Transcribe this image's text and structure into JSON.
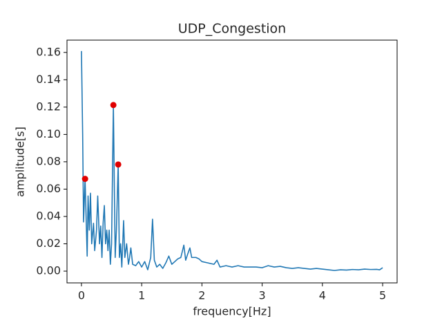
{
  "chart_data": {
    "type": "line",
    "title": "UDP_Congestion",
    "xlabel": "frequency[Hz]",
    "ylabel": "amplitude[s]",
    "xlim": [
      -0.24,
      5.24
    ],
    "ylim": [
      -0.0086,
      0.169
    ],
    "xticks": [
      0,
      1,
      2,
      3,
      4,
      5
    ],
    "yticks": [
      {
        "value": 0,
        "label": "0.00"
      },
      {
        "value": 0.02,
        "label": "0.02"
      },
      {
        "value": 0.04,
        "label": "0.04"
      },
      {
        "value": 0.06,
        "label": "0.06"
      },
      {
        "value": 0.08,
        "label": "0.08"
      },
      {
        "value": 0.1,
        "label": "0.10"
      },
      {
        "value": 0.12,
        "label": "0.12"
      },
      {
        "value": 0.14,
        "label": "0.14"
      },
      {
        "value": 0.16,
        "label": "0.16"
      }
    ],
    "series": [
      {
        "type": "line",
        "color": "#1f77b4",
        "x": [
          0,
          0.02,
          0.035,
          0.06,
          0.08,
          0.095,
          0.11,
          0.13,
          0.15,
          0.17,
          0.2,
          0.22,
          0.25,
          0.27,
          0.3,
          0.32,
          0.34,
          0.36,
          0.38,
          0.4,
          0.42,
          0.44,
          0.46,
          0.48,
          0.5,
          0.53,
          0.56,
          0.58,
          0.61,
          0.63,
          0.65,
          0.67,
          0.7,
          0.72,
          0.75,
          0.78,
          0.8,
          0.82,
          0.85,
          0.9,
          0.95,
          1.0,
          1.05,
          1.1,
          1.15,
          1.18,
          1.21,
          1.25,
          1.3,
          1.35,
          1.4,
          1.45,
          1.5,
          1.55,
          1.6,
          1.65,
          1.7,
          1.73,
          1.76,
          1.8,
          1.83,
          1.9,
          1.95,
          2.0,
          2.1,
          2.2,
          2.25,
          2.3,
          2.4,
          2.5,
          2.6,
          2.7,
          2.8,
          2.9,
          3.0,
          3.1,
          3.2,
          3.3,
          3.4,
          3.5,
          3.6,
          3.7,
          3.8,
          3.9,
          4.0,
          4.1,
          4.2,
          4.3,
          4.4,
          4.5,
          4.6,
          4.7,
          4.8,
          4.9,
          4.95,
          5.0
        ],
        "values": [
          0.161,
          0.1,
          0.036,
          0.0675,
          0.035,
          0.011,
          0.055,
          0.03,
          0.057,
          0.02,
          0.035,
          0.015,
          0.03,
          0.055,
          0.02,
          0.033,
          0.01,
          0.035,
          0.048,
          0.02,
          0.03,
          0.015,
          0.03,
          0.005,
          0.02,
          0.1215,
          0.01,
          0.03,
          0.078,
          0.01,
          0.02,
          0.003,
          0.037,
          0.01,
          0.02,
          0.005,
          0.01,
          0.017,
          0.005,
          0.004,
          0.007,
          0.003,
          0.007,
          0.001,
          0.01,
          0.038,
          0.008,
          0.003,
          0.005,
          0.002,
          0.006,
          0.011,
          0.005,
          0.007,
          0.009,
          0.01,
          0.019,
          0.008,
          0.012,
          0.017,
          0.01,
          0.01,
          0.009,
          0.007,
          0.006,
          0.005,
          0.008,
          0.003,
          0.004,
          0.003,
          0.004,
          0.003,
          0.003,
          0.003,
          0.0025,
          0.004,
          0.003,
          0.0035,
          0.0025,
          0.002,
          0.0025,
          0.002,
          0.0015,
          0.002,
          0.0015,
          0.001,
          0.0005,
          0.001,
          0.0008,
          0.0012,
          0.001,
          0.0015,
          0.0012,
          0.0013,
          0.001,
          0.0025
        ]
      },
      {
        "type": "scatter",
        "color": "#e00000",
        "x": [
          0.06,
          0.53,
          0.61
        ],
        "values": [
          0.0675,
          0.1215,
          0.078
        ]
      }
    ]
  }
}
